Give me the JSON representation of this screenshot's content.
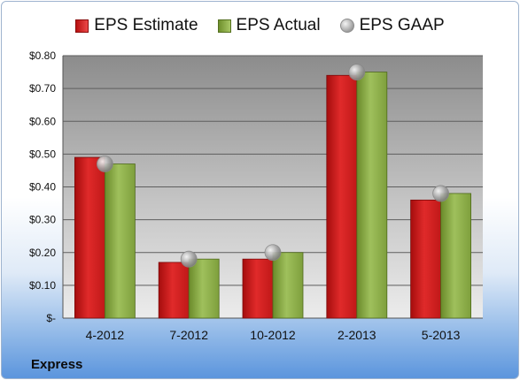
{
  "company": "Express",
  "chart_data": {
    "type": "bar",
    "title": "",
    "xlabel": "",
    "ylabel": "",
    "categories": [
      "4-2012",
      "7-2012",
      "10-2012",
      "2-2013",
      "5-2013"
    ],
    "series": [
      {
        "name": "EPS Estimate",
        "kind": "bar",
        "color": "#d42626",
        "values": [
          0.49,
          0.17,
          0.18,
          0.74,
          0.36
        ]
      },
      {
        "name": "EPS Actual",
        "kind": "bar",
        "color": "#8bb04a",
        "values": [
          0.47,
          0.18,
          0.2,
          0.75,
          0.38
        ]
      },
      {
        "name": "EPS GAAP",
        "kind": "marker",
        "color": "#a6a6a6",
        "values": [
          0.47,
          0.18,
          0.2,
          0.75,
          0.38
        ]
      }
    ],
    "ylim": [
      0,
      0.8
    ],
    "yticks": [
      0,
      0.1,
      0.2,
      0.3,
      0.4,
      0.5,
      0.6,
      0.7,
      0.8
    ],
    "ytick_labels": [
      "$-",
      "$0.10",
      "$0.20",
      "$0.30",
      "$0.40",
      "$0.50",
      "$0.60",
      "$0.70",
      "$0.80"
    ],
    "grid": true,
    "legend": "top"
  }
}
